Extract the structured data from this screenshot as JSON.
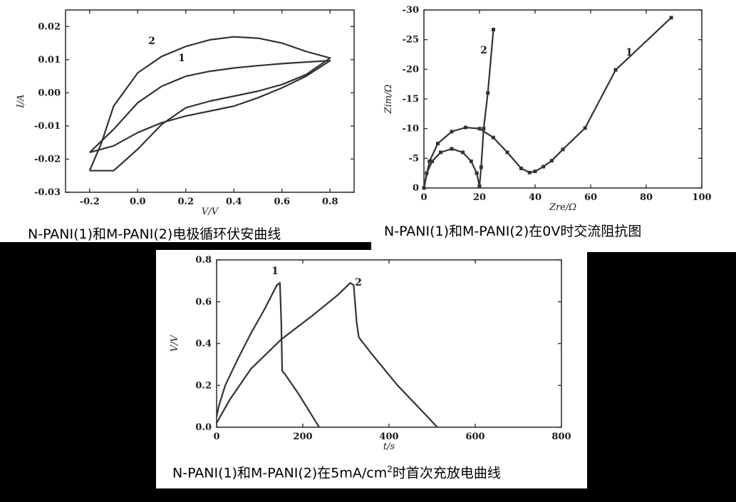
{
  "captions": {
    "cv": "N-PANI(1)和M-PANI(2)电极循环伏安曲线",
    "eis": "N-PANI(1)和M-PANI(2)在0V时交流阻抗图",
    "gcd_pre": "N-PANI(1)和M-PANI(2)在5mA/cm",
    "gcd_sup": "2",
    "gcd_post": "时首次充放电曲线"
  },
  "chart_data": [
    {
      "type": "line",
      "xlabel": "V/V",
      "ylabel": "I/A",
      "xlim": [
        -0.3,
        0.9
      ],
      "ylim": [
        -0.03,
        0.025
      ],
      "xticks": [
        "-0.2",
        "0.0",
        "0.2",
        "0.4",
        "0.6",
        "0.8"
      ],
      "yticks": [
        "-0.03",
        "-0.02",
        "-0.01",
        "0.00",
        "0.01",
        "0.02"
      ],
      "series": [
        {
          "name": "1",
          "x": [
            -0.2,
            -0.1,
            0.0,
            0.1,
            0.2,
            0.3,
            0.4,
            0.5,
            0.6,
            0.7,
            0.8,
            0.8,
            0.7,
            0.6,
            0.5,
            0.4,
            0.3,
            0.2,
            0.1,
            0.0,
            -0.1,
            -0.2
          ],
          "y": [
            -0.018,
            -0.011,
            -0.003,
            0.002,
            0.005,
            0.0065,
            0.0075,
            0.0082,
            0.0088,
            0.0093,
            0.0097,
            0.0097,
            0.005,
            0.0015,
            -0.0015,
            -0.004,
            -0.0055,
            -0.007,
            -0.009,
            -0.012,
            -0.016,
            -0.018
          ]
        },
        {
          "name": "2",
          "x": [
            -0.2,
            -0.15,
            -0.1,
            0.0,
            0.1,
            0.2,
            0.3,
            0.4,
            0.5,
            0.6,
            0.7,
            0.8,
            0.8,
            0.7,
            0.6,
            0.5,
            0.4,
            0.3,
            0.2,
            0.1,
            0.0,
            -0.1,
            -0.2
          ],
          "y": [
            -0.0235,
            -0.015,
            -0.004,
            0.006,
            0.011,
            0.014,
            0.016,
            0.0169,
            0.0165,
            0.015,
            0.0125,
            0.0105,
            0.0105,
            0.0055,
            0.0025,
            0.0005,
            -0.001,
            -0.0025,
            -0.0045,
            -0.0095,
            -0.017,
            -0.0235,
            -0.0235
          ]
        }
      ],
      "annotations": [
        "1",
        "2"
      ]
    },
    {
      "type": "line",
      "xlabel": "Zre/Ω",
      "ylabel": "Zim/Ω",
      "xlim": [
        0,
        100
      ],
      "ylim": [
        0,
        -30
      ],
      "xticks": [
        "0",
        "20",
        "40",
        "60",
        "80",
        "100"
      ],
      "yticks": [
        "0",
        "-5",
        "-10",
        "-15",
        "-20",
        "-25",
        "-30"
      ],
      "series": [
        {
          "name": "1",
          "x": [
            0,
            2,
            5,
            10,
            15,
            20,
            25,
            30,
            35,
            38,
            40,
            43,
            46,
            50,
            58,
            69,
            89
          ],
          "y": [
            0,
            -4.5,
            -7.5,
            -9.5,
            -10.2,
            -10.0,
            -8.5,
            -6.0,
            -3.3,
            -2.6,
            -2.8,
            -3.6,
            -4.6,
            -6.5,
            -10.1,
            -19.9,
            -28.7
          ]
        },
        {
          "name": "2",
          "x": [
            0,
            1,
            3,
            6,
            10,
            14,
            17,
            19,
            20,
            20.6,
            21.5,
            23,
            25
          ],
          "y": [
            0,
            -2.5,
            -4.5,
            -6.0,
            -6.6,
            -6.0,
            -4.5,
            -2.5,
            -0.3,
            -3.5,
            -10.0,
            -16.0,
            -26.7
          ]
        }
      ],
      "annotations": [
        "1",
        "2"
      ]
    },
    {
      "type": "line",
      "xlabel": "t/s",
      "ylabel": "V/V",
      "xlim": [
        0,
        800
      ],
      "ylim": [
        0,
        0.8
      ],
      "xticks": [
        "0",
        "200",
        "400",
        "600",
        "800"
      ],
      "yticks": [
        "0.0",
        "0.2",
        "0.4",
        "0.6",
        "0.8"
      ],
      "series": [
        {
          "name": "1",
          "x": [
            0,
            5,
            20,
            50,
            80,
            110,
            140,
            147,
            150,
            152,
            160,
            190,
            220,
            238
          ],
          "y": [
            0.05,
            0.1,
            0.2,
            0.33,
            0.45,
            0.56,
            0.68,
            0.69,
            0.5,
            0.27,
            0.25,
            0.16,
            0.06,
            0.0
          ]
        },
        {
          "name": "2",
          "x": [
            0,
            30,
            80,
            150,
            220,
            280,
            310,
            318,
            325,
            330,
            360,
            420,
            480,
            512
          ],
          "y": [
            0.02,
            0.13,
            0.28,
            0.42,
            0.53,
            0.63,
            0.69,
            0.68,
            0.5,
            0.43,
            0.35,
            0.2,
            0.07,
            0.0
          ]
        }
      ],
      "annotations": [
        "1",
        "2"
      ]
    }
  ]
}
